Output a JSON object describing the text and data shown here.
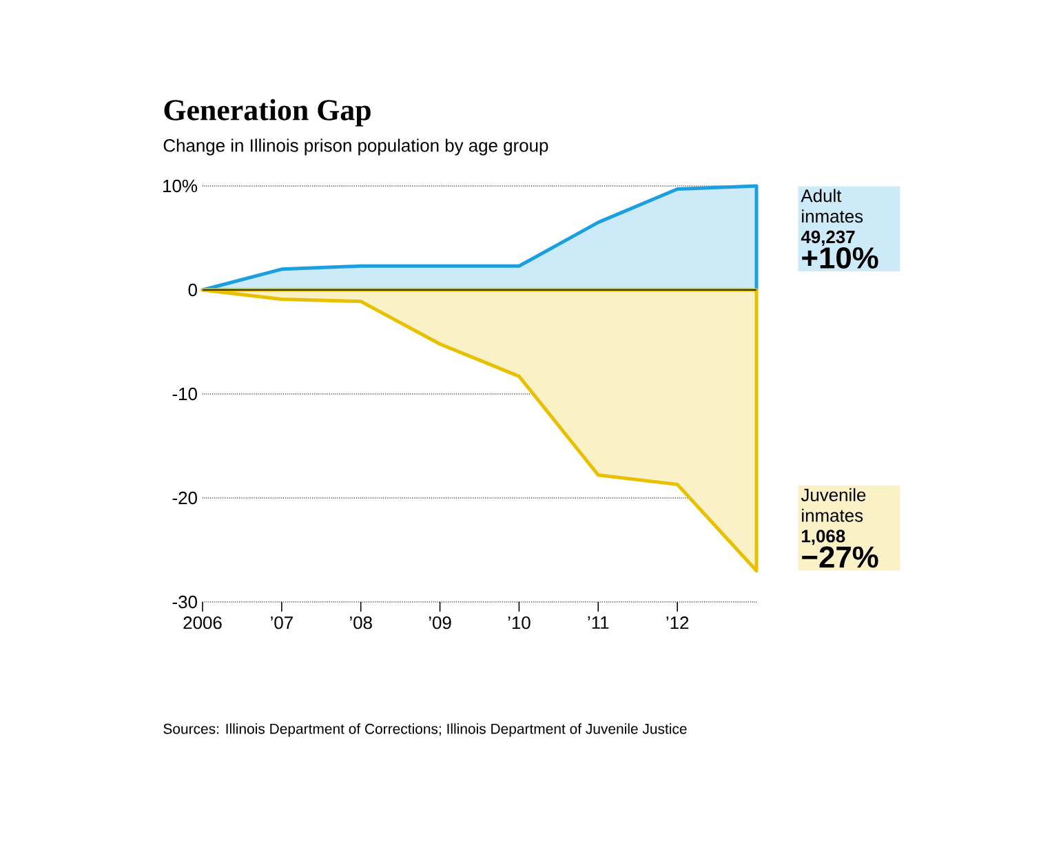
{
  "chart_data": {
    "type": "area",
    "title": "Generation Gap",
    "subtitle": "Change in Illinois prison population by age group",
    "x": [
      2006,
      2007,
      2008,
      2009,
      2010,
      2011,
      2012,
      2013
    ],
    "series": [
      {
        "name": "Adult inmates",
        "color": "#1c9fe0",
        "values": [
          0,
          2.0,
          2.3,
          2.3,
          2.3,
          6.5,
          9.7,
          10
        ]
      },
      {
        "name": "Juvenile inmates",
        "color": "#e8c000",
        "values": [
          0,
          -0.9,
          -1.1,
          -5.2,
          -8.3,
          -17.8,
          -18.7,
          -27
        ]
      }
    ],
    "xlim": [
      2006,
      2013
    ],
    "xticks": [
      {
        "value": 2006,
        "label": "2006"
      },
      {
        "value": 2007,
        "label": "’07"
      },
      {
        "value": 2008,
        "label": "’08"
      },
      {
        "value": 2009,
        "label": "’09"
      },
      {
        "value": 2010,
        "label": "’10"
      },
      {
        "value": 2011,
        "label": "’11"
      },
      {
        "value": 2012,
        "label": "’12"
      }
    ],
    "ylim": [
      -30,
      10
    ],
    "yticks": [
      {
        "value": 10,
        "label": "10%"
      },
      0,
      -10,
      -20,
      -30
    ],
    "grid": "y",
    "ref_lines": [
      {
        "axis": "y",
        "value": 0,
        "color": "#000000"
      }
    ],
    "annotations": [
      "49,237",
      "+10%",
      "1,068",
      "−27%",
      "Sources: Illinois Department of Corrections; Illinois Department of Juvenile Justice"
    ]
  }
}
